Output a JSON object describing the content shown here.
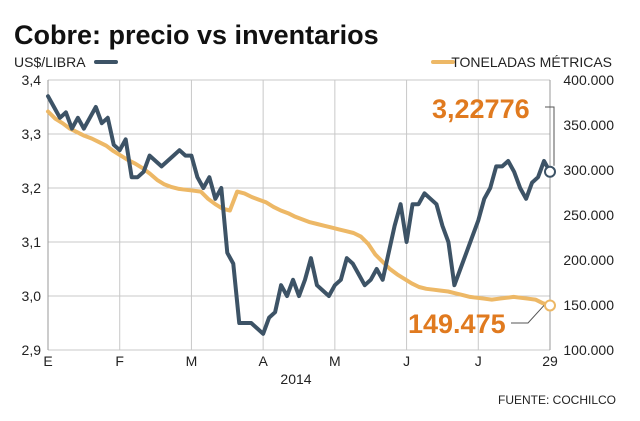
{
  "chart_data": {
    "type": "line",
    "title": "Cobre: precio vs inventarios",
    "year_label": "2014",
    "x_ticks": [
      "E",
      "F",
      "M",
      "A",
      "M",
      "J",
      "J",
      "29"
    ],
    "left_axis": {
      "label": "US$/LIBRA",
      "ylim": [
        2.9,
        3.4
      ],
      "ticks": [
        "3,4",
        "3,3",
        "3,2",
        "3,1",
        "3,0",
        "2,9"
      ],
      "tick_values": [
        3.4,
        3.3,
        3.2,
        3.1,
        3.0,
        2.9
      ]
    },
    "right_axis": {
      "label": "TONELADAS MÉTRICAS",
      "ylim": [
        100000,
        400000
      ],
      "ticks": [
        "400.000",
        "350.000",
        "300.000",
        "250.000",
        "200.000",
        "150.000",
        "100.000"
      ],
      "tick_values": [
        400000,
        350000,
        300000,
        250000,
        200000,
        150000,
        100000
      ]
    },
    "series": [
      {
        "name": "Precio",
        "axis": "left",
        "color": "#3d5366",
        "values": [
          3.37,
          3.35,
          3.33,
          3.34,
          3.31,
          3.33,
          3.31,
          3.33,
          3.35,
          3.32,
          3.33,
          3.28,
          3.27,
          3.29,
          3.22,
          3.22,
          3.23,
          3.26,
          3.25,
          3.24,
          3.25,
          3.26,
          3.27,
          3.26,
          3.26,
          3.22,
          3.2,
          3.22,
          3.18,
          3.2,
          3.08,
          3.06,
          2.95,
          2.95,
          2.95,
          2.94,
          2.93,
          2.96,
          2.97,
          3.02,
          3.0,
          3.03,
          3.0,
          3.03,
          3.07,
          3.02,
          3.01,
          3.0,
          3.02,
          3.03,
          3.07,
          3.06,
          3.04,
          3.02,
          3.03,
          3.05,
          3.03,
          3.08,
          3.13,
          3.17,
          3.1,
          3.17,
          3.17,
          3.19,
          3.18,
          3.17,
          3.13,
          3.1,
          3.02,
          3.05,
          3.08,
          3.11,
          3.14,
          3.18,
          3.2,
          3.24,
          3.24,
          3.25,
          3.23,
          3.2,
          3.18,
          3.21,
          3.22,
          3.25,
          3.23
        ]
      },
      {
        "name": "Inventarios",
        "axis": "right",
        "color": "#edb866",
        "values": [
          365000,
          357000,
          352000,
          346000,
          342000,
          338000,
          335000,
          331000,
          327000,
          321000,
          316000,
          311000,
          307000,
          302000,
          296000,
          289000,
          284000,
          281000,
          279000,
          278000,
          277000,
          276000,
          268000,
          262000,
          257000,
          255000,
          276000,
          274000,
          270000,
          267000,
          264000,
          259000,
          255000,
          252000,
          248000,
          245000,
          242000,
          240000,
          238000,
          236000,
          234000,
          232000,
          230000,
          226000,
          218000,
          206000,
          198000,
          190000,
          184000,
          179000,
          174000,
          170000,
          168000,
          167000,
          166000,
          165000,
          163000,
          161000,
          159000,
          158000,
          157000,
          156000,
          157000,
          158000,
          159000,
          158000,
          157000,
          156000,
          152000,
          149475
        ]
      }
    ],
    "callouts": {
      "price": "3,22776",
      "inventory": "149.475"
    },
    "source": "FUENTE: COCHILCO"
  }
}
